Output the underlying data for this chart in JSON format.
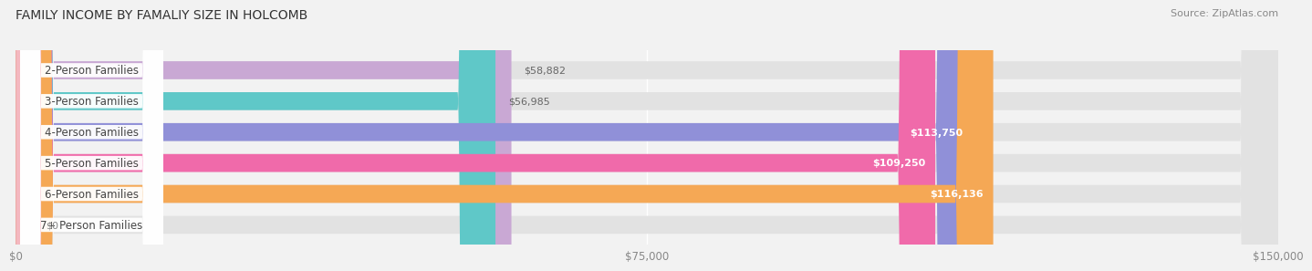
{
  "title": "FAMILY INCOME BY FAMALIY SIZE IN HOLCOMB",
  "source": "Source: ZipAtlas.com",
  "categories": [
    "2-Person Families",
    "3-Person Families",
    "4-Person Families",
    "5-Person Families",
    "6-Person Families",
    "7+ Person Families"
  ],
  "values": [
    58882,
    56985,
    113750,
    109250,
    116136,
    0
  ],
  "bar_colors": [
    "#c9a8d4",
    "#5fc8c8",
    "#9090d8",
    "#f06aaa",
    "#f5a855",
    "#f4b8c0"
  ],
  "value_labels": [
    "$58,882",
    "$56,985",
    "$113,750",
    "$109,250",
    "$116,136",
    "$0"
  ],
  "value_inside": [
    false,
    false,
    true,
    true,
    true,
    false
  ],
  "xlim": [
    0,
    150000
  ],
  "xticks": [
    0,
    75000,
    150000
  ],
  "xticklabels": [
    "$0",
    "$75,000",
    "$150,000"
  ],
  "background_color": "#f2f2f2",
  "bar_bg_color": "#e2e2e2",
  "title_fontsize": 10,
  "label_fontsize": 8.5,
  "value_fontsize": 8,
  "source_fontsize": 8
}
